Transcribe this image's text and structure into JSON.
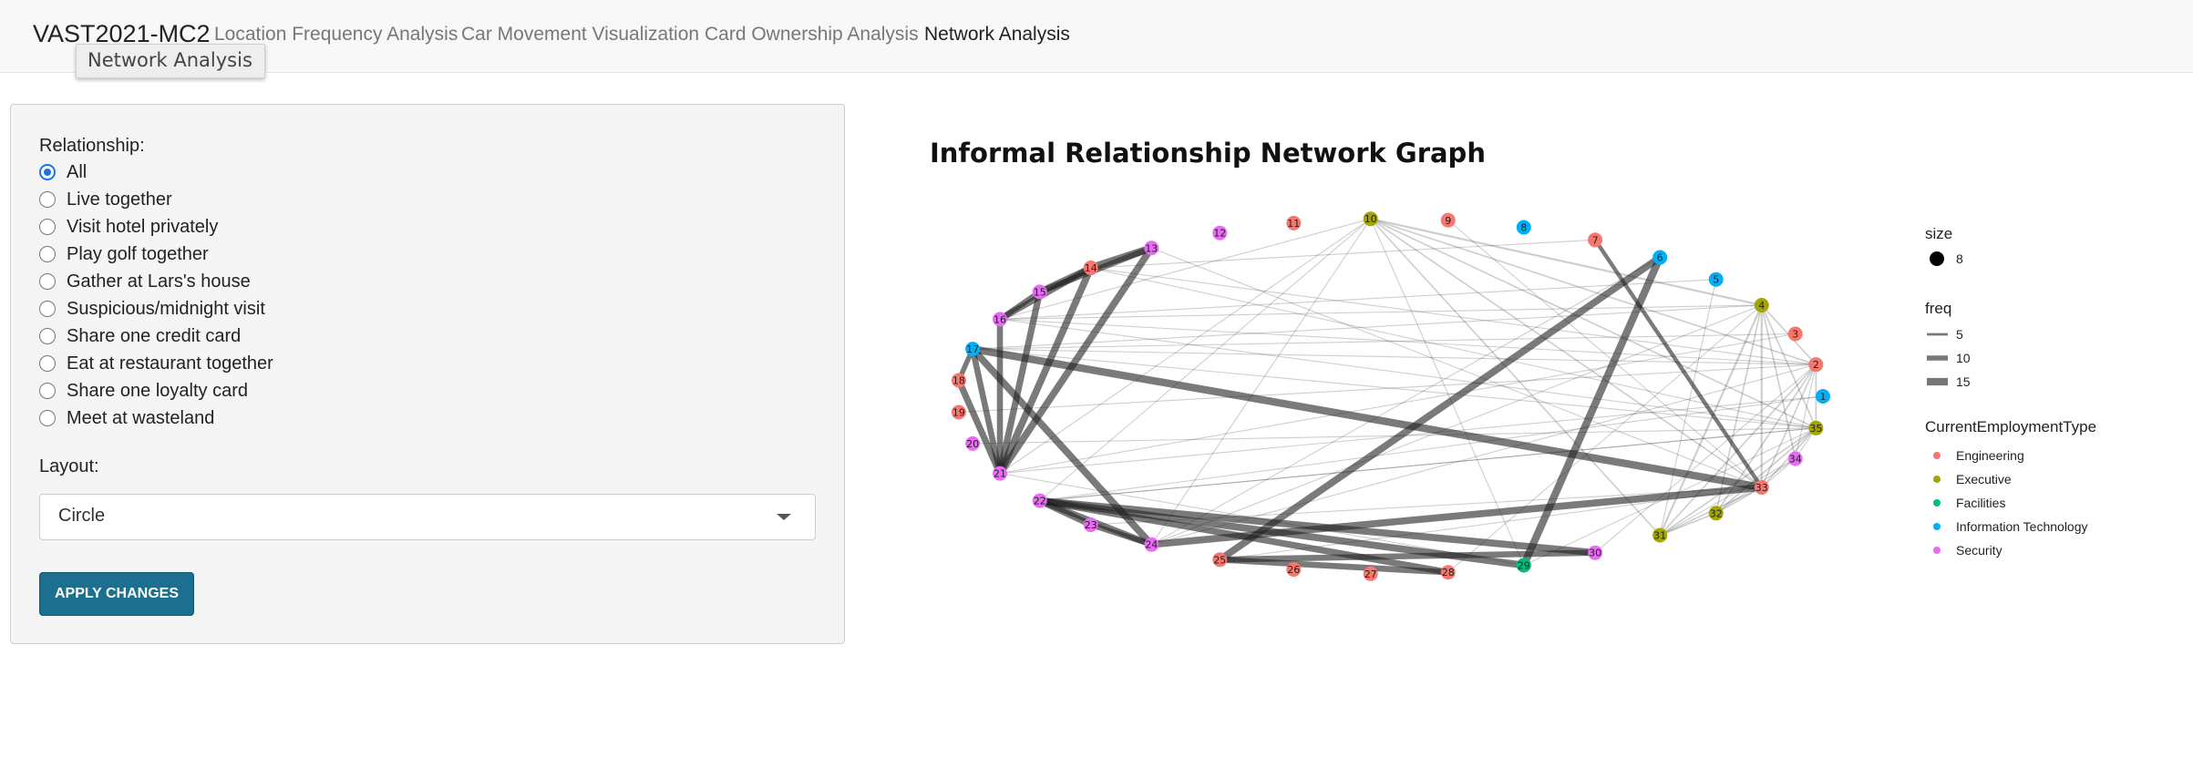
{
  "navbar": {
    "brand": "VAST2021-MC2",
    "tabs": [
      {
        "label": "Location Frequency Analysis"
      },
      {
        "label": "Car Movement Visualization"
      },
      {
        "label": "Card Ownership Analysis"
      },
      {
        "label": "Network Analysis"
      }
    ],
    "active_tab": "Network Analysis",
    "tooltip": "Network Analysis"
  },
  "sidebar": {
    "relationship_label": "Relationship:",
    "options": [
      "All",
      "Live together",
      "Visit hotel privately",
      "Play golf together",
      "Gather at Lars's house",
      "Suspicious/midnight visit",
      "Share one credit card",
      "Eat at restaurant together",
      "Share one loyalty card",
      "Meet at wasteland"
    ],
    "selected": "All",
    "layout_label": "Layout:",
    "layout_value": "Circle",
    "apply_label": "APPLY CHANGES"
  },
  "graph": {
    "title": "Informal Relationship Network Graph",
    "colors": {
      "Engineering": "#f8766d",
      "Executive": "#a3a500",
      "Facilities": "#00bf7d",
      "Information Technology": "#00b0f6",
      "Security": "#e76bf3"
    },
    "legend": {
      "size_title": "size",
      "size_value": "8",
      "freq_title": "freq",
      "freq_values": [
        "5",
        "10",
        "15"
      ],
      "type_title": "CurrentEmploymentType",
      "type_values": [
        "Engineering",
        "Executive",
        "Facilities",
        "Information Technology",
        "Security"
      ]
    },
    "nodes": [
      {
        "id": "1",
        "type": "Information Technology"
      },
      {
        "id": "2",
        "type": "Engineering"
      },
      {
        "id": "3",
        "type": "Engineering"
      },
      {
        "id": "4",
        "type": "Executive"
      },
      {
        "id": "5",
        "type": "Information Technology"
      },
      {
        "id": "6",
        "type": "Information Technology"
      },
      {
        "id": "7",
        "type": "Engineering"
      },
      {
        "id": "8",
        "type": "Information Technology"
      },
      {
        "id": "9",
        "type": "Engineering"
      },
      {
        "id": "10",
        "type": "Executive"
      },
      {
        "id": "11",
        "type": "Engineering"
      },
      {
        "id": "12",
        "type": "Security"
      },
      {
        "id": "13",
        "type": "Security"
      },
      {
        "id": "14",
        "type": "Engineering"
      },
      {
        "id": "15",
        "type": "Security"
      },
      {
        "id": "16",
        "type": "Security"
      },
      {
        "id": "17",
        "type": "Information Technology"
      },
      {
        "id": "18",
        "type": "Engineering"
      },
      {
        "id": "19",
        "type": "Engineering"
      },
      {
        "id": "20",
        "type": "Security"
      },
      {
        "id": "21",
        "type": "Security"
      },
      {
        "id": "22",
        "type": "Security"
      },
      {
        "id": "23",
        "type": "Security"
      },
      {
        "id": "24",
        "type": "Security"
      },
      {
        "id": "25",
        "type": "Engineering"
      },
      {
        "id": "26",
        "type": "Engineering"
      },
      {
        "id": "27",
        "type": "Engineering"
      },
      {
        "id": "28",
        "type": "Engineering"
      },
      {
        "id": "29",
        "type": "Facilities"
      },
      {
        "id": "30",
        "type": "Security"
      },
      {
        "id": "31",
        "type": "Executive"
      },
      {
        "id": "32",
        "type": "Executive"
      },
      {
        "id": "33",
        "type": "Engineering"
      },
      {
        "id": "34",
        "type": "Security"
      },
      {
        "id": "35",
        "type": "Executive"
      }
    ],
    "edges": [
      {
        "s": "13",
        "t": "14",
        "freq": 15
      },
      {
        "s": "13",
        "t": "15",
        "freq": 12
      },
      {
        "s": "13",
        "t": "21",
        "freq": 14
      },
      {
        "s": "14",
        "t": "15",
        "freq": 13
      },
      {
        "s": "14",
        "t": "16",
        "freq": 12
      },
      {
        "s": "14",
        "t": "21",
        "freq": 14
      },
      {
        "s": "15",
        "t": "16",
        "freq": 11
      },
      {
        "s": "15",
        "t": "21",
        "freq": 13
      },
      {
        "s": "16",
        "t": "21",
        "freq": 12
      },
      {
        "s": "17",
        "t": "18",
        "freq": 10
      },
      {
        "s": "17",
        "t": "21",
        "freq": 12
      },
      {
        "s": "17",
        "t": "24",
        "freq": 14
      },
      {
        "s": "17",
        "t": "33",
        "freq": 15
      },
      {
        "s": "18",
        "t": "21",
        "freq": 13
      },
      {
        "s": "22",
        "t": "23",
        "freq": 13
      },
      {
        "s": "22",
        "t": "24",
        "freq": 12
      },
      {
        "s": "22",
        "t": "28",
        "freq": 13
      },
      {
        "s": "22",
        "t": "29",
        "freq": 14
      },
      {
        "s": "22",
        "t": "30",
        "freq": 14
      },
      {
        "s": "23",
        "t": "24",
        "freq": 11
      },
      {
        "s": "24",
        "t": "33",
        "freq": 14
      },
      {
        "s": "25",
        "t": "6",
        "freq": 14
      },
      {
        "s": "25",
        "t": "28",
        "freq": 12
      },
      {
        "s": "25",
        "t": "30",
        "freq": 12
      },
      {
        "s": "29",
        "t": "6",
        "freq": 15
      },
      {
        "s": "7",
        "t": "33",
        "freq": 8
      },
      {
        "s": "4",
        "t": "33",
        "freq": 4
      },
      {
        "s": "4",
        "t": "31",
        "freq": 4
      },
      {
        "s": "4",
        "t": "2",
        "freq": 3
      },
      {
        "s": "4",
        "t": "35",
        "freq": 3
      },
      {
        "s": "4",
        "t": "32",
        "freq": 3
      },
      {
        "s": "4",
        "t": "34",
        "freq": 3
      },
      {
        "s": "10",
        "t": "4",
        "freq": 4
      },
      {
        "s": "10",
        "t": "2",
        "freq": 3
      },
      {
        "s": "10",
        "t": "33",
        "freq": 3
      },
      {
        "s": "10",
        "t": "31",
        "freq": 3
      },
      {
        "s": "10",
        "t": "35",
        "freq": 3
      },
      {
        "s": "10",
        "t": "29",
        "freq": 2
      },
      {
        "s": "10",
        "t": "22",
        "freq": 2
      },
      {
        "s": "10",
        "t": "21",
        "freq": 2
      },
      {
        "s": "10",
        "t": "16",
        "freq": 2
      },
      {
        "s": "10",
        "t": "24",
        "freq": 2
      },
      {
        "s": "35",
        "t": "2",
        "freq": 3
      },
      {
        "s": "35",
        "t": "31",
        "freq": 3
      },
      {
        "s": "35",
        "t": "32",
        "freq": 3
      },
      {
        "s": "35",
        "t": "33",
        "freq": 3
      },
      {
        "s": "35",
        "t": "34",
        "freq": 2
      },
      {
        "s": "35",
        "t": "22",
        "freq": 2
      },
      {
        "s": "35",
        "t": "16",
        "freq": 2
      },
      {
        "s": "35",
        "t": "17",
        "freq": 2
      },
      {
        "s": "2",
        "t": "33",
        "freq": 3
      },
      {
        "s": "2",
        "t": "31",
        "freq": 3
      },
      {
        "s": "2",
        "t": "32",
        "freq": 3
      },
      {
        "s": "2",
        "t": "34",
        "freq": 2
      },
      {
        "s": "2",
        "t": "24",
        "freq": 2
      },
      {
        "s": "2",
        "t": "17",
        "freq": 2
      },
      {
        "s": "2",
        "t": "16",
        "freq": 2
      },
      {
        "s": "2",
        "t": "14",
        "freq": 2
      },
      {
        "s": "33",
        "t": "31",
        "freq": 3
      },
      {
        "s": "33",
        "t": "32",
        "freq": 3
      },
      {
        "s": "33",
        "t": "34",
        "freq": 2
      },
      {
        "s": "31",
        "t": "32",
        "freq": 3
      },
      {
        "s": "31",
        "t": "34",
        "freq": 2
      },
      {
        "s": "32",
        "t": "34",
        "freq": 2
      },
      {
        "s": "1",
        "t": "22",
        "freq": 2
      },
      {
        "s": "1",
        "t": "21",
        "freq": 2
      },
      {
        "s": "5",
        "t": "16",
        "freq": 2
      },
      {
        "s": "5",
        "t": "31",
        "freq": 2
      },
      {
        "s": "3",
        "t": "17",
        "freq": 2
      },
      {
        "s": "3",
        "t": "21",
        "freq": 2
      },
      {
        "s": "9",
        "t": "33",
        "freq": 2
      },
      {
        "s": "6",
        "t": "24",
        "freq": 2
      },
      {
        "s": "7",
        "t": "14",
        "freq": 2
      },
      {
        "s": "13",
        "t": "33",
        "freq": 2
      },
      {
        "s": "14",
        "t": "35",
        "freq": 2
      },
      {
        "s": "16",
        "t": "4",
        "freq": 2
      },
      {
        "s": "17",
        "t": "4",
        "freq": 2
      },
      {
        "s": "20",
        "t": "35",
        "freq": 2
      },
      {
        "s": "21",
        "t": "29",
        "freq": 2
      },
      {
        "s": "22",
        "t": "35",
        "freq": 2
      },
      {
        "s": "24",
        "t": "4",
        "freq": 2
      },
      {
        "s": "25",
        "t": "33",
        "freq": 2
      },
      {
        "s": "28",
        "t": "4",
        "freq": 2
      },
      {
        "s": "29",
        "t": "35",
        "freq": 2
      },
      {
        "s": "30",
        "t": "2",
        "freq": 2
      },
      {
        "s": "23",
        "t": "33",
        "freq": 2
      },
      {
        "s": "19",
        "t": "2",
        "freq": 2
      }
    ]
  }
}
